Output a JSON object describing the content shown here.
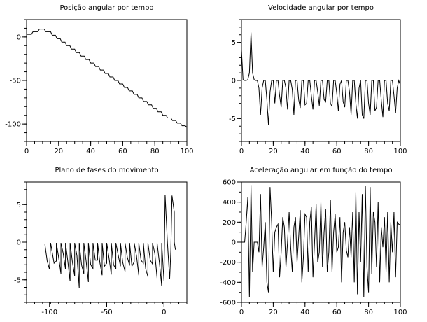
{
  "chart_data": [
    {
      "type": "line",
      "title": "Posição angular por tempo",
      "xlabel": "",
      "ylabel": "",
      "xlim": [
        0,
        100
      ],
      "ylim": [
        -120,
        20
      ],
      "xticks": [
        "0",
        "20",
        "40",
        "60",
        "80",
        "100"
      ],
      "yticks": [
        "0",
        "-50",
        "-100"
      ],
      "series": [
        {
          "x": [
            0,
            3,
            4,
            7,
            8,
            11,
            12,
            15,
            16,
            18,
            19,
            21,
            22,
            24,
            25,
            27,
            28,
            30,
            31,
            33,
            34,
            36,
            37,
            39,
            40,
            42,
            43,
            45,
            46,
            48,
            49,
            51,
            52,
            54,
            55,
            57,
            58,
            60,
            61,
            63,
            64,
            66,
            67,
            69,
            70,
            72,
            73,
            75,
            76,
            78,
            79,
            81,
            82,
            84,
            85,
            87,
            88,
            90,
            91,
            93,
            94,
            96,
            97,
            99,
            100
          ],
          "values": [
            3,
            3,
            6,
            6,
            9,
            9,
            6,
            6,
            2,
            2,
            -2,
            -2,
            -6,
            -6,
            -10,
            -10,
            -14,
            -14,
            -18,
            -18,
            -22,
            -22,
            -26,
            -26,
            -30,
            -30,
            -34,
            -34,
            -38,
            -38,
            -42,
            -42,
            -46,
            -46,
            -50,
            -50,
            -54,
            -54,
            -58,
            -58,
            -62,
            -62,
            -66,
            -66,
            -70,
            -70,
            -74,
            -74,
            -78,
            -78,
            -82,
            -82,
            -86,
            -86,
            -90,
            -90,
            -93,
            -93,
            -96,
            -96,
            -99,
            -99,
            -102,
            -102,
            -104
          ]
        }
      ]
    },
    {
      "type": "line",
      "title": "Velocidade angular por tempo",
      "xlabel": "",
      "ylabel": "",
      "xlim": [
        0,
        100
      ],
      "ylim": [
        -8,
        8
      ],
      "xticks": [
        "0",
        "20",
        "40",
        "60",
        "80",
        "100"
      ],
      "yticks": [
        "5",
        "0",
        "-5"
      ],
      "series": [
        {
          "x": [
            0,
            1,
            2,
            3,
            4,
            5,
            6,
            7,
            8,
            9,
            10,
            11,
            12,
            13,
            14,
            15,
            16,
            17,
            18,
            19,
            20,
            21,
            22,
            23,
            24,
            25,
            26,
            27,
            28,
            29,
            30,
            31,
            32,
            33,
            34,
            35,
            36,
            37,
            38,
            39,
            40,
            41,
            42,
            43,
            44,
            45,
            46,
            47,
            48,
            49,
            50,
            51,
            52,
            53,
            54,
            55,
            56,
            57,
            58,
            59,
            60,
            61,
            62,
            63,
            64,
            65,
            66,
            67,
            68,
            69,
            70,
            71,
            72,
            73,
            74,
            75,
            76,
            77,
            78,
            79,
            80,
            81,
            82,
            83,
            84,
            85,
            86,
            87,
            88,
            89,
            90,
            91,
            92,
            93,
            94,
            95,
            96,
            97,
            98,
            99,
            100
          ],
          "values": [
            4,
            0.1,
            0,
            0,
            0.1,
            1,
            6.3,
            1,
            0.1,
            0,
            0,
            -1,
            -4.5,
            -1,
            0,
            0,
            -2.5,
            -5.8,
            -1.5,
            0,
            0,
            -3,
            0,
            0,
            -2,
            -3.5,
            0,
            0,
            -1,
            -3.8,
            0,
            0,
            -1.2,
            -4.5,
            0,
            0,
            -2.5,
            -3.6,
            0,
            0,
            -3.2,
            -3,
            0,
            0,
            -2,
            -3.8,
            0,
            0,
            -1.5,
            -3.3,
            0,
            0,
            -2.5,
            -2.8,
            0,
            0,
            -3,
            -3.4,
            0,
            0,
            -1.7,
            -4,
            -0.5,
            0,
            -2.8,
            -3.5,
            0,
            0,
            -1.5,
            -4.5,
            0,
            0,
            -3,
            -5,
            -1,
            0,
            -4.5,
            -5,
            0,
            0,
            -3,
            -4.5,
            0,
            0,
            -4,
            -3.5,
            0,
            0,
            -2.6,
            -4.8,
            0,
            0,
            -3,
            -4,
            0,
            0,
            -2,
            -4.3,
            -1,
            0,
            -0.6
          ]
        }
      ]
    },
    {
      "type": "line",
      "title": "Plano de fases do movimento",
      "xlabel": "",
      "ylabel": "",
      "xlim": [
        -120,
        20
      ],
      "ylim": [
        -8,
        8
      ],
      "xticks": [
        "-100",
        "-50",
        "0"
      ],
      "yticks": [
        "5",
        "0",
        "-5"
      ],
      "series": [
        {
          "x": [
            -104,
            -102,
            -100,
            -99,
            -96,
            -94,
            -94,
            -92,
            -90,
            -90,
            -88,
            -86,
            -86,
            -84,
            -82,
            -82,
            -80,
            -78,
            -78,
            -76,
            -74,
            -74,
            -72,
            -70,
            -70,
            -68,
            -66,
            -66,
            -64,
            -62,
            -62,
            -60,
            -58,
            -58,
            -56,
            -54,
            -54,
            -52,
            -50,
            -50,
            -48,
            -46,
            -46,
            -44,
            -42,
            -42,
            -40,
            -38,
            -38,
            -36,
            -34,
            -34,
            -32,
            -30,
            -30,
            -28,
            -26,
            -26,
            -24,
            -22,
            -22,
            -20,
            -18,
            -18,
            -16,
            -14,
            -14,
            -12,
            -10,
            -10,
            -8,
            -6,
            -6,
            -4,
            -2,
            -2,
            0,
            1,
            3,
            5,
            6,
            7,
            9,
            9,
            10
          ],
          "values": [
            -0.3,
            -2.5,
            -3.6,
            -0.1,
            -2.8,
            -2.5,
            -0.1,
            -2,
            -4.2,
            -0.1,
            -1.5,
            -3.6,
            -0.1,
            -2.5,
            -5.2,
            -0.1,
            -2.6,
            -4.5,
            -0.1,
            -1.8,
            -6.1,
            -0.1,
            -3,
            -4.2,
            -0.1,
            -2.5,
            -5.3,
            -0.1,
            -3,
            -3.5,
            -0.1,
            -2.4,
            -2.4,
            -0.1,
            -2.7,
            -4.4,
            -0.1,
            -3.2,
            -2.8,
            -0.1,
            -2.1,
            -4.3,
            -0.1,
            -3,
            -3.6,
            -0.1,
            -1.7,
            -3.2,
            -0.1,
            -2.7,
            -3.9,
            -0.1,
            -2,
            -3.1,
            -0.1,
            -3.2,
            -2.6,
            -0.1,
            -1.8,
            -4.4,
            -0.1,
            -2.4,
            -2.8,
            -0.1,
            -3.5,
            -4.6,
            -0.1,
            -2.4,
            -2.9,
            -0.1,
            -1.5,
            -4.8,
            -0.1,
            -2.7,
            -5.8,
            -0.1,
            -5.1,
            6.3,
            0,
            -4.9,
            -1.2,
            6.2,
            4,
            0,
            -1
          ]
        }
      ]
    },
    {
      "type": "line",
      "title": "Aceleração angular em função do tempo",
      "xlabel": "",
      "ylabel": "",
      "xlim": [
        0,
        100
      ],
      "ylim": [
        -600,
        600
      ],
      "xticks": [
        "0",
        "20",
        "40",
        "60",
        "80",
        "100"
      ],
      "yticks": [
        "600",
        "400",
        "200",
        "0",
        "-200",
        "-400",
        "-600"
      ],
      "series": [
        {
          "x": [
            0,
            2,
            3,
            4,
            5,
            6,
            7,
            8,
            10,
            11,
            12,
            13,
            14,
            15,
            16,
            17,
            18,
            19,
            20,
            21,
            22,
            23,
            24,
            25,
            26,
            27,
            28,
            29,
            30,
            31,
            32,
            33,
            34,
            35,
            36,
            37,
            38,
            39,
            40,
            41,
            42,
            43,
            44,
            45,
            46,
            47,
            48,
            49,
            50,
            51,
            52,
            53,
            54,
            55,
            56,
            57,
            58,
            59,
            60,
            61,
            62,
            63,
            64,
            65,
            66,
            67,
            68,
            69,
            70,
            71,
            72,
            73,
            74,
            75,
            76,
            77,
            78,
            79,
            80,
            81,
            82,
            83,
            84,
            85,
            86,
            87,
            88,
            89,
            90,
            91,
            92,
            93,
            94,
            95,
            96,
            97,
            98,
            99,
            100
          ],
          "values": [
            0,
            0,
            200,
            450,
            -550,
            570,
            -300,
            0,
            0,
            -100,
            480,
            -250,
            -50,
            200,
            -400,
            -500,
            550,
            200,
            -300,
            100,
            150,
            180,
            -350,
            -100,
            250,
            150,
            -250,
            0,
            300,
            -50,
            -300,
            150,
            250,
            -200,
            50,
            320,
            -400,
            -150,
            280,
            250,
            -300,
            200,
            350,
            -350,
            0,
            380,
            -200,
            -100,
            400,
            -250,
            100,
            330,
            -300,
            -100,
            420,
            -300,
            100,
            280,
            -100,
            -50,
            250,
            -400,
            100,
            200,
            -80,
            -150,
            150,
            -150,
            300,
            -400,
            500,
            -520,
            300,
            -200,
            480,
            -550,
            560,
            -250,
            -500,
            550,
            -320,
            300,
            200,
            -250,
            400,
            -400,
            150,
            -50,
            250,
            -300,
            300,
            -400,
            200,
            -100,
            300,
            -350,
            200,
            180,
            170
          ]
        }
      ]
    }
  ]
}
